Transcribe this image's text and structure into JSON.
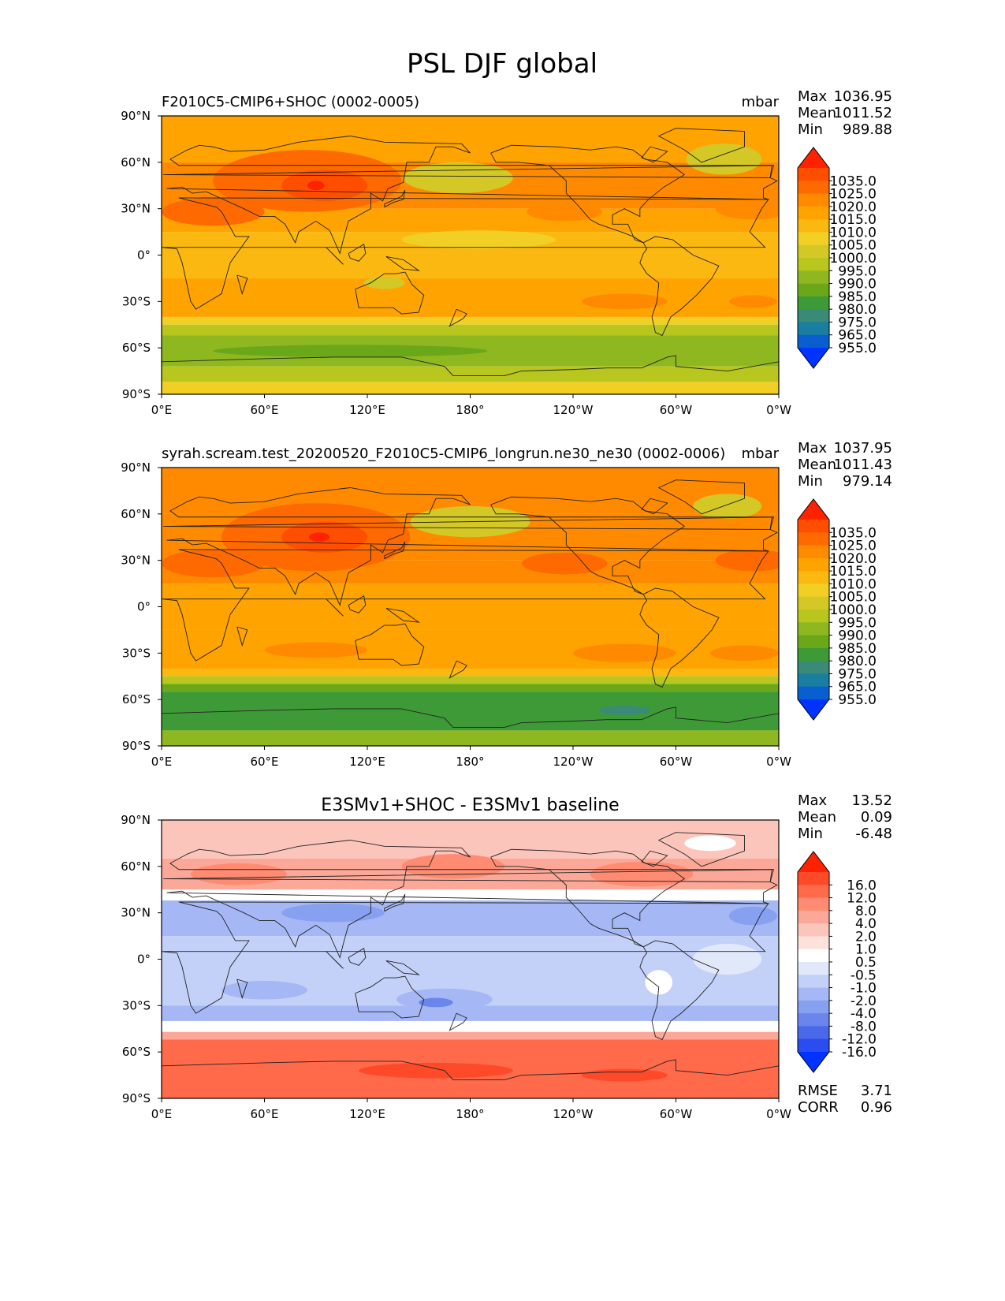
{
  "figure": {
    "title": "PSL DJF global"
  },
  "axes_ticks": {
    "lat": [
      "90°N",
      "60°N",
      "30°N",
      "0°",
      "30°S",
      "60°S",
      "90°S"
    ],
    "lon": [
      "0°E",
      "60°E",
      "120°E",
      "180°",
      "120°W",
      "60°W",
      "0°W"
    ]
  },
  "stats_labels": {
    "max": "Max",
    "mean": "Mean",
    "min": "Min",
    "rmse": "RMSE",
    "corr": "CORR"
  },
  "chart_data": [
    {
      "type": "heatmap",
      "title": "F2010C5-CMIP6+SHOC (0002-0005)",
      "units": "mbar",
      "lon_range": [
        0,
        360
      ],
      "lat_range": [
        -90,
        90
      ],
      "stats": {
        "max": "1036.95",
        "mean": "1011.52",
        "min": "989.88"
      },
      "colorbar": {
        "levels": [
          "1035.0",
          "1025.0",
          "1020.0",
          "1015.0",
          "1010.0",
          "1005.0",
          "1000.0",
          "995.0",
          "990.0",
          "985.0",
          "980.0",
          "975.0",
          "965.0",
          "955.0"
        ],
        "colors": [
          "#ff2200",
          "#ff4e00",
          "#ff6a00",
          "#ff8a00",
          "#ffa300",
          "#fbb810",
          "#f2cf25",
          "#d3c825",
          "#b8c61d",
          "#8fb820",
          "#6aa81a",
          "#3e9a36",
          "#3a8a78",
          "#197ea0",
          "#0a5fd0",
          "#0033ff"
        ]
      },
      "lat_bands": [
        {
          "lat": [
            60,
            90
          ],
          "color": "#ffa300"
        },
        {
          "lat": [
            30,
            60
          ],
          "color": "#ff8a00"
        },
        {
          "lat": [
            15,
            30
          ],
          "color": "#ffa300"
        },
        {
          "lat": [
            -15,
            15
          ],
          "color": "#fbb810"
        },
        {
          "lat": [
            -40,
            -15
          ],
          "color": "#ffa300"
        },
        {
          "lat": [
            -45,
            -40
          ],
          "color": "#f2cf25"
        },
        {
          "lat": [
            -52,
            -45
          ],
          "color": "#b8c61d"
        },
        {
          "lat": [
            -72,
            -52
          ],
          "color": "#8fb820"
        },
        {
          "lat": [
            -82,
            -72
          ],
          "color": "#b8c61d"
        },
        {
          "lat": [
            -90,
            -82
          ],
          "color": "#f2cf25"
        }
      ],
      "blobs": [
        {
          "lon": 85,
          "lat": 48,
          "rlon": 55,
          "rlat": 20,
          "color": "#ff6a00"
        },
        {
          "lon": 95,
          "lat": 45,
          "rlon": 25,
          "rlat": 10,
          "color": "#ff4e00"
        },
        {
          "lon": 90,
          "lat": 45,
          "rlon": 5,
          "rlat": 3,
          "color": "#ff2200"
        },
        {
          "lon": 30,
          "lat": 28,
          "rlon": 30,
          "rlat": 9,
          "color": "#ff6a00"
        },
        {
          "lon": 173,
          "lat": 50,
          "rlon": 32,
          "rlat": 10,
          "color": "#d3c825"
        },
        {
          "lon": 328,
          "lat": 62,
          "rlon": 22,
          "rlat": 10,
          "color": "#d3c825"
        },
        {
          "lon": 235,
          "lat": 28,
          "rlon": 22,
          "rlat": 6,
          "color": "#ff8a00"
        },
        {
          "lon": 345,
          "lat": 30,
          "rlon": 22,
          "rlat": 7,
          "color": "#ff8a00"
        },
        {
          "lon": 270,
          "lat": -30,
          "rlon": 25,
          "rlat": 5,
          "color": "#ff8a00"
        },
        {
          "lon": 345,
          "lat": -30,
          "rlon": 14,
          "rlat": 4,
          "color": "#ff8a00"
        },
        {
          "lon": 185,
          "lat": 10,
          "rlon": 45,
          "rlat": 6,
          "color": "#f2cf25"
        },
        {
          "lon": 130,
          "lat": -18,
          "rlon": 12,
          "rlat": 4,
          "color": "#d3c825"
        },
        {
          "lon": 110,
          "lat": -62,
          "rlon": 80,
          "rlat": 4,
          "color": "#6aa81a"
        }
      ]
    },
    {
      "type": "heatmap",
      "title": "syrah.scream.test_20200520_F2010C5-CMIP6_longrun.ne30_ne30 (0002-0006)",
      "units": "mbar",
      "lon_range": [
        0,
        360
      ],
      "lat_range": [
        -90,
        90
      ],
      "stats": {
        "max": "1037.95",
        "mean": "1011.43",
        "min": "979.14"
      },
      "colorbar": {
        "levels": [
          "1035.0",
          "1025.0",
          "1020.0",
          "1015.0",
          "1010.0",
          "1005.0",
          "1000.0",
          "995.0",
          "990.0",
          "985.0",
          "980.0",
          "975.0",
          "965.0",
          "955.0"
        ],
        "colors": [
          "#ff2200",
          "#ff4e00",
          "#ff6a00",
          "#ff8a00",
          "#ffa300",
          "#fbb810",
          "#f2cf25",
          "#d3c825",
          "#b8c61d",
          "#8fb820",
          "#6aa81a",
          "#3e9a36",
          "#3a8a78",
          "#197ea0",
          "#0a5fd0",
          "#0033ff"
        ]
      },
      "lat_bands": [
        {
          "lat": [
            60,
            90
          ],
          "color": "#ff8a00"
        },
        {
          "lat": [
            30,
            60
          ],
          "color": "#ff8a00"
        },
        {
          "lat": [
            15,
            30
          ],
          "color": "#ff8a00"
        },
        {
          "lat": [
            -15,
            15
          ],
          "color": "#ffa300"
        },
        {
          "lat": [
            -40,
            -15
          ],
          "color": "#ffa300"
        },
        {
          "lat": [
            -45,
            -40
          ],
          "color": "#fbb810"
        },
        {
          "lat": [
            -50,
            -45
          ],
          "color": "#b8c61d"
        },
        {
          "lat": [
            -55,
            -50
          ],
          "color": "#6aa81a"
        },
        {
          "lat": [
            -80,
            -55
          ],
          "color": "#3e9a36"
        },
        {
          "lat": [
            -90,
            -80
          ],
          "color": "#8fb820"
        }
      ],
      "blobs": [
        {
          "lon": 90,
          "lat": 45,
          "rlon": 55,
          "rlat": 22,
          "color": "#ff6a00"
        },
        {
          "lon": 95,
          "lat": 45,
          "rlon": 25,
          "rlat": 10,
          "color": "#ff4e00"
        },
        {
          "lon": 92,
          "lat": 45,
          "rlon": 6,
          "rlat": 3,
          "color": "#ff2200"
        },
        {
          "lon": 30,
          "lat": 28,
          "rlon": 30,
          "rlat": 9,
          "color": "#ff6a00"
        },
        {
          "lon": 180,
          "lat": 55,
          "rlon": 35,
          "rlat": 10,
          "color": "#d3c825"
        },
        {
          "lon": 330,
          "lat": 65,
          "rlon": 20,
          "rlat": 8,
          "color": "#d3c825"
        },
        {
          "lon": 235,
          "lat": 28,
          "rlon": 25,
          "rlat": 7,
          "color": "#ff6a00"
        },
        {
          "lon": 345,
          "lat": 30,
          "rlon": 22,
          "rlat": 7,
          "color": "#ff6a00"
        },
        {
          "lon": 270,
          "lat": -30,
          "rlon": 30,
          "rlat": 6,
          "color": "#ff8a00"
        },
        {
          "lon": 340,
          "lat": -30,
          "rlon": 20,
          "rlat": 5,
          "color": "#ff8a00"
        },
        {
          "lon": 90,
          "lat": -28,
          "rlon": 30,
          "rlat": 5,
          "color": "#ff8a00"
        },
        {
          "lon": 270,
          "lat": -67,
          "rlon": 15,
          "rlat": 3,
          "color": "#3a8a78"
        }
      ]
    },
    {
      "type": "heatmap",
      "title": "E3SMv1+SHOC - E3SMv1 baseline",
      "units": "",
      "lon_range": [
        0,
        360
      ],
      "lat_range": [
        -90,
        90
      ],
      "stats": {
        "max": "13.52",
        "mean": "0.09",
        "min": "-6.48",
        "rmse": "3.71",
        "corr": "0.96"
      },
      "colorbar": {
        "levels": [
          "16.0",
          "12.0",
          "8.0",
          "4.0",
          "2.0",
          "1.0",
          "0.5",
          "-0.5",
          "-1.0",
          "-2.0",
          "-4.0",
          "-8.0",
          "-12.0",
          "-16.0"
        ],
        "colors": [
          "#ff2200",
          "#ff4a2a",
          "#ff6a4a",
          "#ff8c72",
          "#fca898",
          "#fcc5bc",
          "#fde2dc",
          "#ffffff",
          "#e0e8fa",
          "#c3d0f8",
          "#a5b8f5",
          "#87a0f0",
          "#6a86ec",
          "#4a68ea",
          "#2a4cf0",
          "#0033ff"
        ]
      },
      "lat_bands": [
        {
          "lat": [
            65,
            90
          ],
          "color": "#fcc5bc"
        },
        {
          "lat": [
            45,
            65
          ],
          "color": "#fca898"
        },
        {
          "lat": [
            38,
            45
          ],
          "color": "#ffffff"
        },
        {
          "lat": [
            15,
            38
          ],
          "color": "#a5b8f5"
        },
        {
          "lat": [
            -30,
            15
          ],
          "color": "#c3d0f8"
        },
        {
          "lat": [
            -40,
            -30
          ],
          "color": "#a5b8f5"
        },
        {
          "lat": [
            -47,
            -40
          ],
          "color": "#ffffff"
        },
        {
          "lat": [
            -52,
            -47
          ],
          "color": "#fca898"
        },
        {
          "lat": [
            -65,
            -52
          ],
          "color": "#ff6a4a"
        },
        {
          "lat": [
            -90,
            -65
          ],
          "color": "#ff6a4a"
        }
      ],
      "blobs": [
        {
          "lon": 170,
          "lat": 60,
          "rlon": 30,
          "rlat": 8,
          "color": "#ff8c72"
        },
        {
          "lon": 45,
          "lat": 55,
          "rlon": 28,
          "rlat": 7,
          "color": "#ff8c72"
        },
        {
          "lon": 280,
          "lat": 55,
          "rlon": 30,
          "rlat": 8,
          "color": "#ff8c72"
        },
        {
          "lon": 320,
          "lat": 75,
          "rlon": 15,
          "rlat": 5,
          "color": "#ffffff"
        },
        {
          "lon": 100,
          "lat": 30,
          "rlon": 30,
          "rlat": 6,
          "color": "#87a0f0"
        },
        {
          "lon": 345,
          "lat": 28,
          "rlon": 14,
          "rlat": 6,
          "color": "#87a0f0"
        },
        {
          "lon": 330,
          "lat": 0,
          "rlon": 20,
          "rlat": 10,
          "color": "#e0e8fa"
        },
        {
          "lon": 60,
          "lat": -20,
          "rlon": 25,
          "rlat": 6,
          "color": "#a5b8f5"
        },
        {
          "lon": 165,
          "lat": -26,
          "rlon": 28,
          "rlat": 7,
          "color": "#a5b8f5"
        },
        {
          "lon": 160,
          "lat": -28,
          "rlon": 10,
          "rlat": 3,
          "color": "#6a86ec"
        },
        {
          "lon": 290,
          "lat": -15,
          "rlon": 8,
          "rlat": 8,
          "color": "#ffffff"
        },
        {
          "lon": 160,
          "lat": -72,
          "rlon": 45,
          "rlat": 5,
          "color": "#ff4a2a"
        },
        {
          "lon": 270,
          "lat": -75,
          "rlon": 25,
          "rlat": 4,
          "color": "#ff4a2a"
        }
      ]
    }
  ]
}
